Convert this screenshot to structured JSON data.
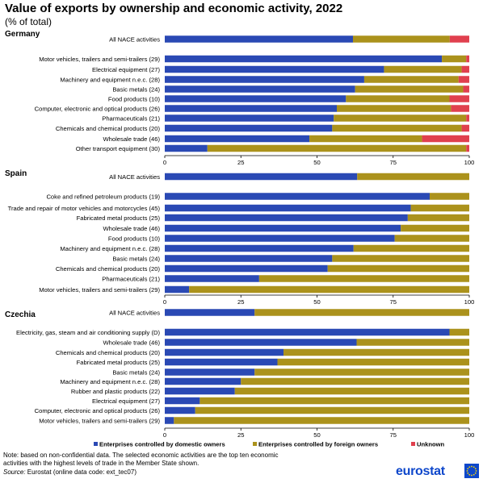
{
  "title": "Value of exports by ownership and economic activity, 2022",
  "subtitle": "(% of total)",
  "colors": {
    "domestic": "#2a49b4",
    "foreign": "#ab921c",
    "unknown": "#e0404e"
  },
  "legend": [
    {
      "key": "domestic",
      "label": "Enterprises controlled by domestic owners"
    },
    {
      "key": "foreign",
      "label": "Enterprises controlled by foreign owners"
    },
    {
      "key": "unknown",
      "label": "Unknown"
    }
  ],
  "chart_data": [
    {
      "type": "bar",
      "orientation": "horizontal",
      "stacked": true,
      "title": "Germany",
      "xlim": [
        0,
        100
      ],
      "xticks": [
        0,
        25,
        50,
        75,
        100
      ],
      "categories": [
        "All NACE activities",
        "Motor vehicles, trailers and semi-trailers (29)",
        "Electrical equipment (27)",
        "Machinery and equipment n.e.c. (28)",
        "Basic metals (24)",
        "Food products (10)",
        "Computer, electronic and optical products (26)",
        "Pharmaceuticals (21)",
        "Chemicals and chemical products (20)",
        "Wholesale trade (46)",
        "Other transport equipment (30)"
      ],
      "series": [
        {
          "name": "Enterprises controlled by domestic owners",
          "values": [
            61.8,
            91.0,
            72.0,
            65.5,
            62.5,
            59.5,
            56.5,
            55.5,
            55.0,
            47.5,
            14.0
          ]
        },
        {
          "name": "Enterprises controlled by foreign owners",
          "values": [
            31.8,
            8.0,
            25.5,
            31.0,
            35.5,
            34.0,
            37.5,
            43.5,
            42.5,
            37.0,
            85.0
          ]
        },
        {
          "name": "Unknown",
          "values": [
            6.4,
            1.0,
            2.5,
            3.5,
            2.0,
            6.5,
            6.0,
            1.0,
            2.5,
            15.5,
            1.0
          ]
        }
      ]
    },
    {
      "type": "bar",
      "orientation": "horizontal",
      "stacked": true,
      "title": "Spain",
      "xlim": [
        0,
        100
      ],
      "xticks": [
        0,
        25,
        50,
        75,
        100
      ],
      "categories": [
        "All NACE activities",
        "Coke and refined petroleum products (19)",
        "Trade and repair of motor vehicles and motorcycles (45)",
        "Fabricated metal products (25)",
        "Wholesale trade (46)",
        "Food products (10)",
        "Machinery and equipment n.e.c. (28)",
        "Basic metals (24)",
        "Chemicals and chemical products (20)",
        "Pharmaceuticals (21)",
        "Motor vehicles, trailers and semi-trailers (29)"
      ],
      "series": [
        {
          "name": "Enterprises controlled by domestic owners",
          "values": [
            63.2,
            87.0,
            80.8,
            79.8,
            77.5,
            75.5,
            62.0,
            55.0,
            53.5,
            31.0,
            8.0
          ]
        },
        {
          "name": "Enterprises controlled by foreign owners",
          "values": [
            36.8,
            13.0,
            19.2,
            20.2,
            22.5,
            24.5,
            38.0,
            45.0,
            46.5,
            69.0,
            92.0
          ]
        },
        {
          "name": "Unknown",
          "values": [
            0,
            0,
            0,
            0,
            0,
            0,
            0,
            0,
            0,
            0,
            0
          ]
        }
      ]
    },
    {
      "type": "bar",
      "orientation": "horizontal",
      "stacked": true,
      "title": "Czechia",
      "xlim": [
        0,
        100
      ],
      "xticks": [
        0,
        25,
        50,
        75,
        100
      ],
      "categories": [
        "All NACE activities",
        "Electricity, gas, steam and air conditioning supply (D)",
        "Wholesale trade (46)",
        "Chemicals and chemical products (20)",
        "Fabricated metal products (25)",
        "Basic metals (24)",
        "Machinery and equipment n.e.c. (28)",
        "Rubber and plastic products (22)",
        "Electrical equipment (27)",
        "Computer, electronic and optical products (26)",
        "Motor vehicles, trailers and semi-trailers (29)"
      ],
      "series": [
        {
          "name": "Enterprises controlled by domestic owners",
          "values": [
            29.5,
            93.5,
            63.0,
            39.0,
            37.0,
            29.5,
            25.0,
            23.0,
            11.5,
            10.0,
            3.0
          ]
        },
        {
          "name": "Enterprises controlled by foreign owners",
          "values": [
            70.5,
            6.5,
            37.0,
            61.0,
            63.0,
            70.5,
            75.0,
            77.0,
            88.5,
            90.0,
            97.0
          ]
        },
        {
          "name": "Unknown",
          "values": [
            0,
            0,
            0,
            0,
            0,
            0,
            0,
            0,
            0,
            0,
            0
          ]
        }
      ]
    }
  ],
  "notes": {
    "line1": "Note: based on non-confidential data. The selected economic activities are the top ten economic",
    "line2": "activities with the highest levels of trade in the Member State shown.",
    "source_label": "Source:",
    "source_text": " Eurostat (online data code: ext_tec07)"
  },
  "logo": {
    "text": "eurostat",
    "icon": "eu-flag-icon"
  }
}
